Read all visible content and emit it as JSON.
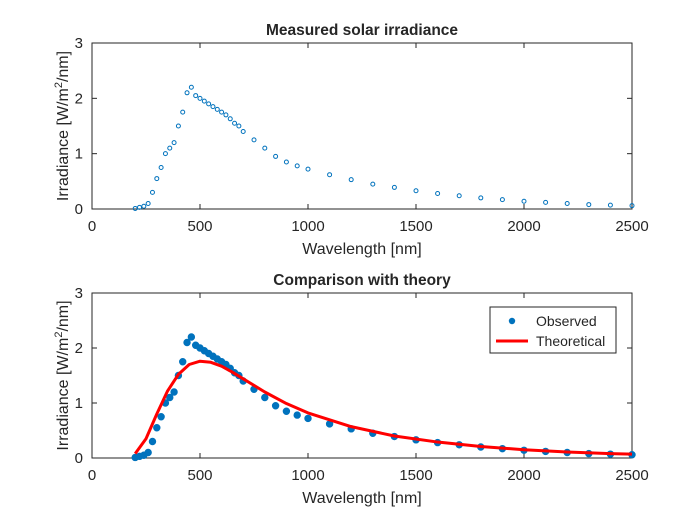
{
  "chart_data": [
    {
      "type": "scatter",
      "title": "Measured solar irradiance",
      "xlabel": "Wavelength [nm]",
      "ylabel": "Irradiance [W/m²/nm]",
      "ylabel_parts": {
        "pre": "Irradiance [W/m",
        "sup": "2",
        "post": "/nm]"
      },
      "xlim": [
        0,
        2500
      ],
      "ylim": [
        0,
        3
      ],
      "xticks": [
        0,
        500,
        1000,
        1500,
        2000,
        2500
      ],
      "yticks": [
        0,
        1,
        2,
        3
      ],
      "xtick_labels": [
        "0",
        "500",
        "1000",
        "1500",
        "2000",
        "2500"
      ],
      "ytick_labels": [
        "0",
        "1",
        "2",
        "3"
      ],
      "marker": "open-circle",
      "series": [
        {
          "color": "#0072BD",
          "x": [
            200,
            220,
            240,
            260,
            280,
            300,
            320,
            340,
            360,
            380,
            400,
            420,
            440,
            460,
            480,
            500,
            520,
            540,
            560,
            580,
            600,
            620,
            640,
            660,
            680,
            700,
            750,
            800,
            850,
            900,
            950,
            1000,
            1100,
            1200,
            1300,
            1400,
            1500,
            1600,
            1700,
            1800,
            1900,
            2000,
            2100,
            2200,
            2300,
            2400,
            2500
          ],
          "y": [
            0.01,
            0.03,
            0.05,
            0.1,
            0.3,
            0.55,
            0.75,
            1.0,
            1.1,
            1.2,
            1.5,
            1.75,
            2.1,
            2.2,
            2.05,
            2.0,
            1.95,
            1.9,
            1.85,
            1.8,
            1.75,
            1.7,
            1.63,
            1.55,
            1.5,
            1.4,
            1.25,
            1.1,
            0.95,
            0.85,
            0.78,
            0.72,
            0.62,
            0.53,
            0.45,
            0.39,
            0.33,
            0.28,
            0.24,
            0.2,
            0.17,
            0.14,
            0.12,
            0.1,
            0.08,
            0.07,
            0.06
          ]
        }
      ]
    },
    {
      "type": "scatter",
      "title": "Comparison with theory",
      "xlabel": "Wavelength [nm]",
      "ylabel": "Irradiance [W/m²/nm]",
      "ylabel_parts": {
        "pre": "Irradiance [W/m",
        "sup": "2",
        "post": "/nm]"
      },
      "xlim": [
        0,
        2500
      ],
      "ylim": [
        0,
        3
      ],
      "xticks": [
        0,
        500,
        1000,
        1500,
        2000,
        2500
      ],
      "yticks": [
        0,
        1,
        2,
        3
      ],
      "xtick_labels": [
        "0",
        "500",
        "1000",
        "1500",
        "2000",
        "2500"
      ],
      "ytick_labels": [
        "0",
        "1",
        "2",
        "3"
      ],
      "legend_position": "top-right",
      "series": [
        {
          "name": "Observed",
          "style": "filled-dot",
          "color": "#0072BD",
          "x": [
            200,
            220,
            240,
            260,
            280,
            300,
            320,
            340,
            360,
            380,
            400,
            420,
            440,
            460,
            480,
            500,
            520,
            540,
            560,
            580,
            600,
            620,
            640,
            660,
            680,
            700,
            750,
            800,
            850,
            900,
            950,
            1000,
            1100,
            1200,
            1300,
            1400,
            1500,
            1600,
            1700,
            1800,
            1900,
            2000,
            2100,
            2200,
            2300,
            2400,
            2500
          ],
          "y": [
            0.01,
            0.03,
            0.05,
            0.1,
            0.3,
            0.55,
            0.75,
            1.0,
            1.1,
            1.2,
            1.5,
            1.75,
            2.1,
            2.2,
            2.05,
            2.0,
            1.95,
            1.9,
            1.85,
            1.8,
            1.75,
            1.7,
            1.63,
            1.55,
            1.5,
            1.4,
            1.25,
            1.1,
            0.95,
            0.85,
            0.78,
            0.72,
            0.62,
            0.53,
            0.45,
            0.39,
            0.33,
            0.28,
            0.24,
            0.2,
            0.17,
            0.14,
            0.12,
            0.1,
            0.08,
            0.07,
            0.06
          ]
        },
        {
          "name": "Theoretical",
          "style": "line",
          "color": "#FF0000",
          "x": [
            200,
            250,
            300,
            350,
            400,
            450,
            500,
            550,
            600,
            650,
            700,
            800,
            900,
            1000,
            1200,
            1400,
            1600,
            1800,
            2000,
            2200,
            2400,
            2500
          ],
          "y": [
            0.08,
            0.35,
            0.8,
            1.22,
            1.52,
            1.7,
            1.76,
            1.74,
            1.67,
            1.56,
            1.44,
            1.2,
            0.99,
            0.82,
            0.57,
            0.4,
            0.29,
            0.21,
            0.15,
            0.11,
            0.08,
            0.07
          ]
        }
      ]
    }
  ]
}
